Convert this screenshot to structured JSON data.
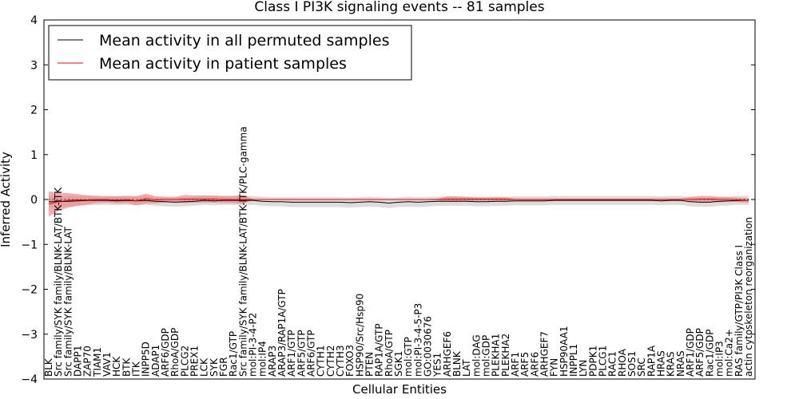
{
  "chart_data": {
    "type": "line",
    "title": "Class I PI3K signaling events -- 81 samples",
    "xlabel": "Cellular Entities",
    "ylabel": "Inferred Activity",
    "ylim": [
      -4,
      4
    ],
    "yticks": [
      "−4",
      "−3",
      "−2",
      "−1",
      "0",
      "1",
      "2",
      "3",
      "4"
    ],
    "grid": false,
    "legend_position": "top-left",
    "colors": {
      "permuted": "#000000",
      "patient": "#ff0000",
      "permuted_band": "#bfbfbf",
      "patient_band": "#f08080"
    },
    "categories": [
      "BLK",
      "Src family/SYK family/BLNK-LAT/BTK-ITK",
      "Src family/SYK family/BLNK-LAT",
      "DAPP1",
      "ZAP70",
      "TIAM1",
      "VAV1",
      "HCK",
      "BTK",
      "ITK",
      "INPP5D",
      "ADAP1",
      "ARF6/GDP",
      "RhoA/GDP",
      "PLCG2",
      "PREX1",
      "LCK",
      "SYK",
      "FGR",
      "Rac1/GTP",
      "Src family/SYK family/BLNK-LAT/BTK-ITK/PLC-gamma",
      "mol:PI-3-4-P2",
      "mol:IP4",
      "ARAP3",
      "ARAP3/RAP1A/GTP",
      "ARF1/GTP",
      "ARF5/GTP",
      "ARF6/GTP",
      "CYTH1",
      "CYTH2",
      "CYTH3",
      "FOXO3",
      "HSP90/Src/Hsp90",
      "PTEN",
      "RAP1A/GTP",
      "RhoA/GTP",
      "SGK1",
      "mol:GTP",
      "mol:PI-3-4-5-P3",
      "GO:0030676",
      "YES1",
      "ARHGEF6",
      "BLNK",
      "LAT",
      "mol:DAG",
      "mol:GDP",
      "PLEKHA1",
      "PLEKHA2",
      "ARF1",
      "ARF5",
      "ARF6",
      "ARHGEF7",
      "FYN",
      "HSP90AA1",
      "INPPL1",
      "LYN",
      "PDPK1",
      "PLCG1",
      "RAC1",
      "RHOA",
      "SOS1",
      "SRC",
      "RAP1A",
      "HRAS",
      "KRAS",
      "NRAS",
      "ARF1/GDP",
      "ARF5/GDP",
      "Rac1/GDP",
      "mol:IP3",
      "mol:Ca2+",
      "RAS family/GTP/PI3K Class I",
      "actin cytoskeleton reorganization"
    ],
    "series": [
      {
        "name": "Mean activity in all permuted samples",
        "values": [
          -0.05,
          -0.05,
          -0.04,
          -0.03,
          -0.02,
          -0.02,
          -0.02,
          -0.03,
          -0.02,
          -0.03,
          -0.02,
          -0.04,
          -0.05,
          -0.06,
          -0.05,
          -0.04,
          -0.02,
          -0.03,
          -0.02,
          -0.02,
          -0.02,
          -0.02,
          -0.04,
          -0.05,
          -0.05,
          -0.06,
          -0.06,
          -0.06,
          -0.06,
          -0.06,
          -0.06,
          -0.07,
          -0.06,
          -0.05,
          -0.06,
          -0.08,
          -0.06,
          -0.05,
          -0.06,
          -0.05,
          -0.04,
          -0.04,
          -0.04,
          -0.04,
          -0.05,
          -0.05,
          -0.04,
          -0.04,
          -0.03,
          -0.03,
          -0.03,
          -0.03,
          -0.02,
          -0.02,
          -0.02,
          -0.02,
          -0.02,
          -0.02,
          -0.02,
          -0.02,
          -0.02,
          -0.02,
          -0.02,
          -0.03,
          -0.02,
          -0.02,
          -0.05,
          -0.06,
          -0.06,
          -0.04,
          -0.03,
          -0.02,
          -0.02
        ],
        "band": [
          0.13,
          0.13,
          0.12,
          0.11,
          0.11,
          0.1,
          0.1,
          0.1,
          0.1,
          0.1,
          0.1,
          0.1,
          0.1,
          0.1,
          0.1,
          0.1,
          0.1,
          0.1,
          0.1,
          0.1,
          0.1,
          0.1,
          0.1,
          0.1,
          0.1,
          0.11,
          0.11,
          0.11,
          0.11,
          0.11,
          0.11,
          0.11,
          0.11,
          0.11,
          0.11,
          0.11,
          0.11,
          0.11,
          0.11,
          0.11,
          0.1,
          0.1,
          0.1,
          0.1,
          0.1,
          0.1,
          0.1,
          0.1,
          0.1,
          0.1,
          0.1,
          0.1,
          0.1,
          0.1,
          0.1,
          0.1,
          0.1,
          0.1,
          0.1,
          0.1,
          0.1,
          0.1,
          0.1,
          0.1,
          0.1,
          0.1,
          0.1,
          0.1,
          0.1,
          0.1,
          0.1,
          0.1,
          0.1
        ]
      },
      {
        "name": "Mean activity in patient samples",
        "values": [
          -0.1,
          -0.05,
          -0.02,
          -0.01,
          -0.01,
          0,
          0,
          -0.01,
          0,
          -0.03,
          0.02,
          -0.01,
          0,
          0,
          0.01,
          0.01,
          0.01,
          0.01,
          0,
          0,
          0,
          0,
          0,
          0,
          0,
          0,
          0,
          0,
          0,
          0,
          0,
          0,
          0,
          0,
          0,
          0,
          0,
          0,
          0,
          0,
          0,
          0.01,
          0.01,
          0.01,
          0.01,
          0.01,
          0.01,
          0.01,
          0,
          0,
          0,
          0,
          0,
          0,
          0,
          0,
          0,
          0,
          0,
          0,
          0,
          0,
          0,
          0,
          0,
          0,
          0,
          0.01,
          0.01,
          0,
          0,
          -0.01,
          -0.02
        ],
        "band": [
          0.28,
          0.2,
          0.16,
          0.13,
          0.1,
          0.08,
          0.07,
          0.08,
          0.08,
          0.1,
          0.11,
          0.08,
          0.06,
          0.06,
          0.09,
          0.08,
          0.08,
          0.08,
          0.08,
          0.08,
          0.1,
          0.01,
          0.01,
          0.01,
          0.01,
          0.01,
          0.01,
          0.01,
          0.01,
          0.01,
          0.01,
          0.01,
          0.01,
          0.01,
          0.01,
          0.01,
          0.01,
          0.01,
          0.01,
          0.01,
          0.02,
          0.06,
          0.06,
          0.05,
          0.04,
          0.04,
          0.04,
          0.04,
          0.02,
          0.02,
          0.02,
          0.02,
          0.02,
          0.02,
          0.02,
          0.02,
          0.02,
          0.02,
          0.02,
          0.02,
          0.02,
          0.02,
          0.02,
          0.02,
          0.02,
          0.02,
          0.06,
          0.07,
          0.07,
          0.06,
          0.05,
          0.05,
          0.05
        ]
      }
    ]
  }
}
